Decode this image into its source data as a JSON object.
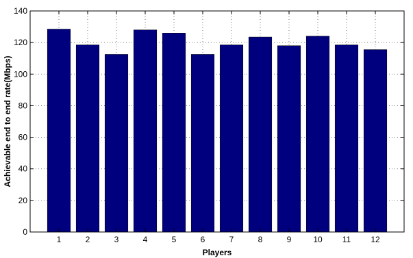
{
  "chart_data": {
    "type": "bar",
    "title": "",
    "xlabel": "Players",
    "ylabel": "Achievable end to end rate(Mbps)",
    "categories": [
      "1",
      "2",
      "3",
      "4",
      "5",
      "6",
      "7",
      "8",
      "9",
      "10",
      "11",
      "12"
    ],
    "values": [
      128.5,
      118.5,
      112.5,
      128,
      126,
      112.5,
      118.5,
      123.5,
      118,
      124,
      118.5,
      115.5
    ],
    "ylim": [
      0,
      140
    ],
    "yticks": [
      "0",
      "20",
      "40",
      "60",
      "80",
      "100",
      "120",
      "140"
    ],
    "grid": true,
    "legend": "none",
    "bar_color": "#00007f"
  }
}
